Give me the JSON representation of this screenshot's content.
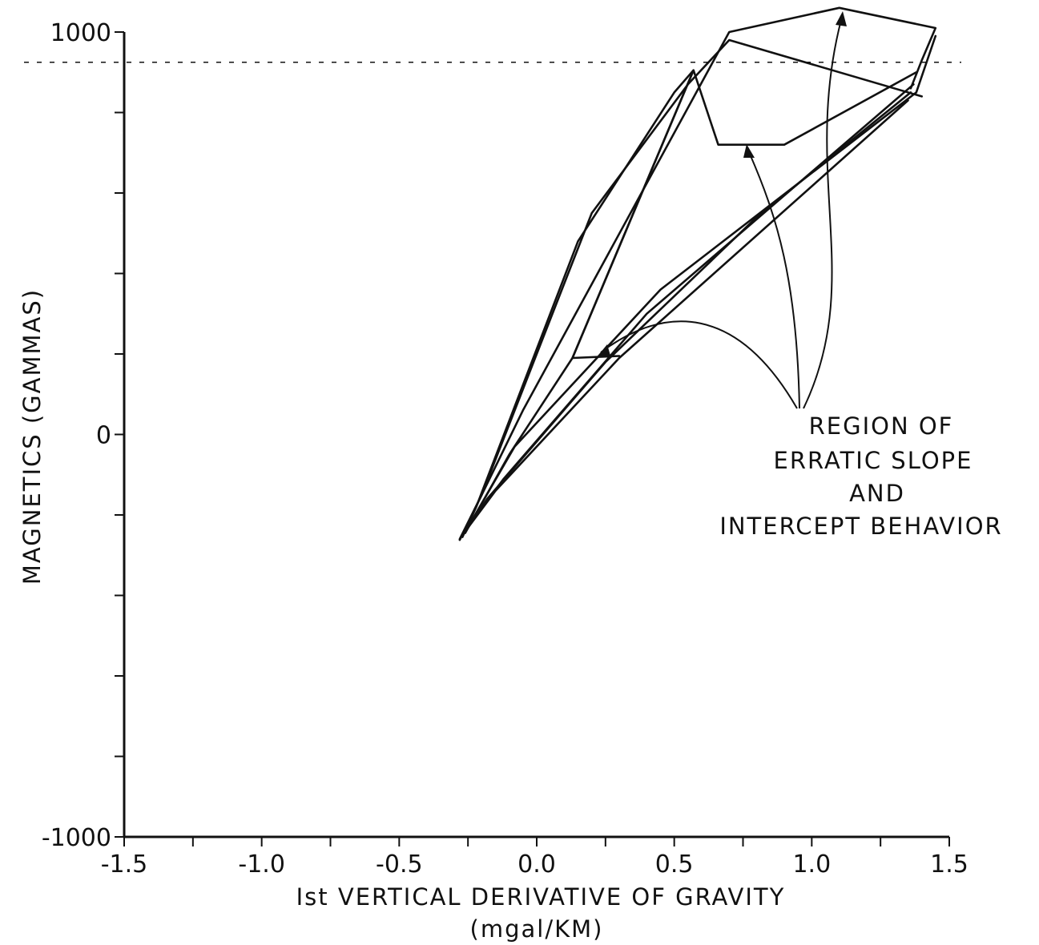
{
  "chart_data": {
    "type": "line",
    "title": "",
    "xlabel": "Ist VERTICAL DERIVATIVE OF GRAVITY",
    "xlabel_units": "(mgal/KM)",
    "ylabel": "MAGNETICS (GAMMAS)",
    "xlim": [
      -1.5,
      1.5
    ],
    "ylim": [
      -1000,
      1000
    ],
    "x_tick_labels": [
      "-1.5",
      "-1.0",
      "-0.5",
      "0.0",
      "0.5",
      "1.0",
      "1.5"
    ],
    "y_tick_labels": [
      "1000",
      "0",
      "-1000"
    ],
    "x_ticks": [
      -1.5,
      -1.25,
      -1.0,
      -0.75,
      -0.5,
      -0.25,
      0.0,
      0.25,
      0.5,
      0.75,
      1.0,
      1.25,
      1.5
    ],
    "y_ticks": [
      1000,
      800,
      600,
      400,
      200,
      0,
      -200,
      -400,
      -600,
      -800,
      -1000
    ],
    "reference_line_y": 925,
    "grid": false,
    "annotation": [
      "REGION OF",
      "ERRATIC SLOPE",
      "AND",
      "INTERCEPT BEHAVIOR"
    ],
    "series": [
      {
        "x": [
          -0.28,
          -0.2,
          0.2,
          0.55,
          0.7,
          1.4
        ],
        "y": [
          -260,
          -150,
          550,
          870,
          980,
          840
        ]
      },
      {
        "x": [
          -0.27,
          -0.22,
          0.15,
          0.5,
          0.57,
          0.13,
          0.3
        ],
        "y": [
          -255,
          -180,
          480,
          850,
          905,
          190,
          195
        ]
      },
      {
        "x": [
          -0.26,
          -0.1,
          0.13,
          0.57,
          0.66,
          0.9,
          1.38
        ],
        "y": [
          -245,
          -50,
          190,
          905,
          720,
          720,
          900
        ]
      },
      {
        "x": [
          -0.28,
          -0.05,
          0.7,
          1.1,
          1.45,
          1.4,
          1.36
        ],
        "y": [
          -262,
          60,
          1000,
          1060,
          1010,
          930,
          860
        ]
      },
      {
        "x": [
          -0.25,
          -0.08,
          0.45,
          1.38,
          1.45
        ],
        "y": [
          -230,
          -30,
          360,
          850,
          990
        ]
      },
      {
        "x": [
          -0.27,
          -0.15,
          0.3,
          1.35
        ],
        "y": [
          -250,
          -140,
          190,
          830
        ]
      },
      {
        "x": [
          -0.24,
          -0.12,
          0.4,
          1.37
        ],
        "y": [
          -220,
          -110,
          300,
          870
        ]
      },
      {
        "x": [
          -0.26,
          -0.18,
          0.25,
          0.8,
          1.36
        ],
        "y": [
          -240,
          -160,
          180,
          540,
          850
        ]
      }
    ]
  }
}
